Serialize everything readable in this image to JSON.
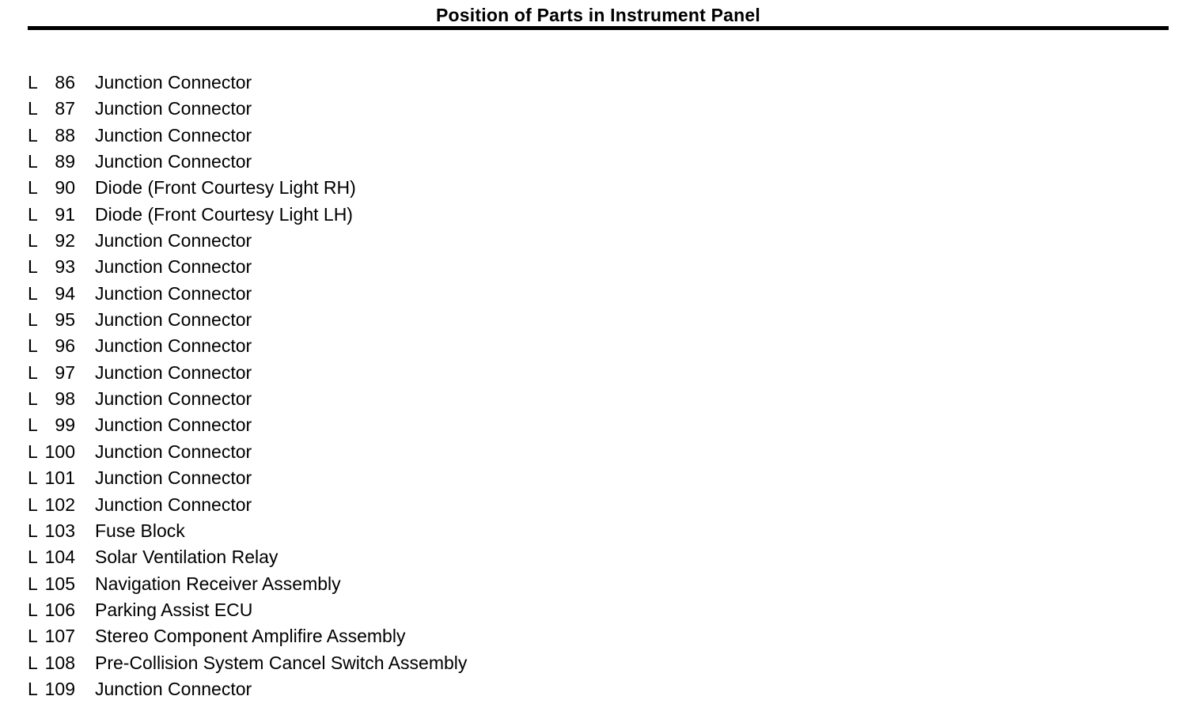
{
  "header": {
    "title": "Position of Parts in Instrument Panel"
  },
  "colors": {
    "background": "#ffffff",
    "text": "#000000",
    "rule": "#000000"
  },
  "parts": {
    "items": [
      {
        "code": "L",
        "number": "86",
        "name": "Junction Connector"
      },
      {
        "code": "L",
        "number": "87",
        "name": "Junction Connector"
      },
      {
        "code": "L",
        "number": "88",
        "name": "Junction Connector"
      },
      {
        "code": "L",
        "number": "89",
        "name": "Junction Connector"
      },
      {
        "code": "L",
        "number": "90",
        "name": "Diode (Front Courtesy Light RH)"
      },
      {
        "code": "L",
        "number": "91",
        "name": "Diode (Front Courtesy Light LH)"
      },
      {
        "code": "L",
        "number": "92",
        "name": "Junction Connector"
      },
      {
        "code": "L",
        "number": "93",
        "name": "Junction Connector"
      },
      {
        "code": "L",
        "number": "94",
        "name": "Junction Connector"
      },
      {
        "code": "L",
        "number": "95",
        "name": "Junction Connector"
      },
      {
        "code": "L",
        "number": "96",
        "name": "Junction Connector"
      },
      {
        "code": "L",
        "number": "97",
        "name": "Junction Connector"
      },
      {
        "code": "L",
        "number": "98",
        "name": "Junction Connector"
      },
      {
        "code": "L",
        "number": "99",
        "name": "Junction Connector"
      },
      {
        "code": "L",
        "number": "100",
        "name": "Junction Connector"
      },
      {
        "code": "L",
        "number": "101",
        "name": "Junction Connector"
      },
      {
        "code": "L",
        "number": "102",
        "name": "Junction Connector"
      },
      {
        "code": "L",
        "number": "103",
        "name": "Fuse Block"
      },
      {
        "code": "L",
        "number": "104",
        "name": "Solar Ventilation Relay"
      },
      {
        "code": "L",
        "number": "105",
        "name": "Navigation Receiver Assembly"
      },
      {
        "code": "L",
        "number": "106",
        "name": "Parking Assist ECU"
      },
      {
        "code": "L",
        "number": "107",
        "name": "Stereo Component Amplifire Assembly"
      },
      {
        "code": "L",
        "number": "108",
        "name": "Pre-Collision System Cancel Switch Assembly"
      },
      {
        "code": "L",
        "number": "109",
        "name": "Junction Connector"
      }
    ]
  }
}
